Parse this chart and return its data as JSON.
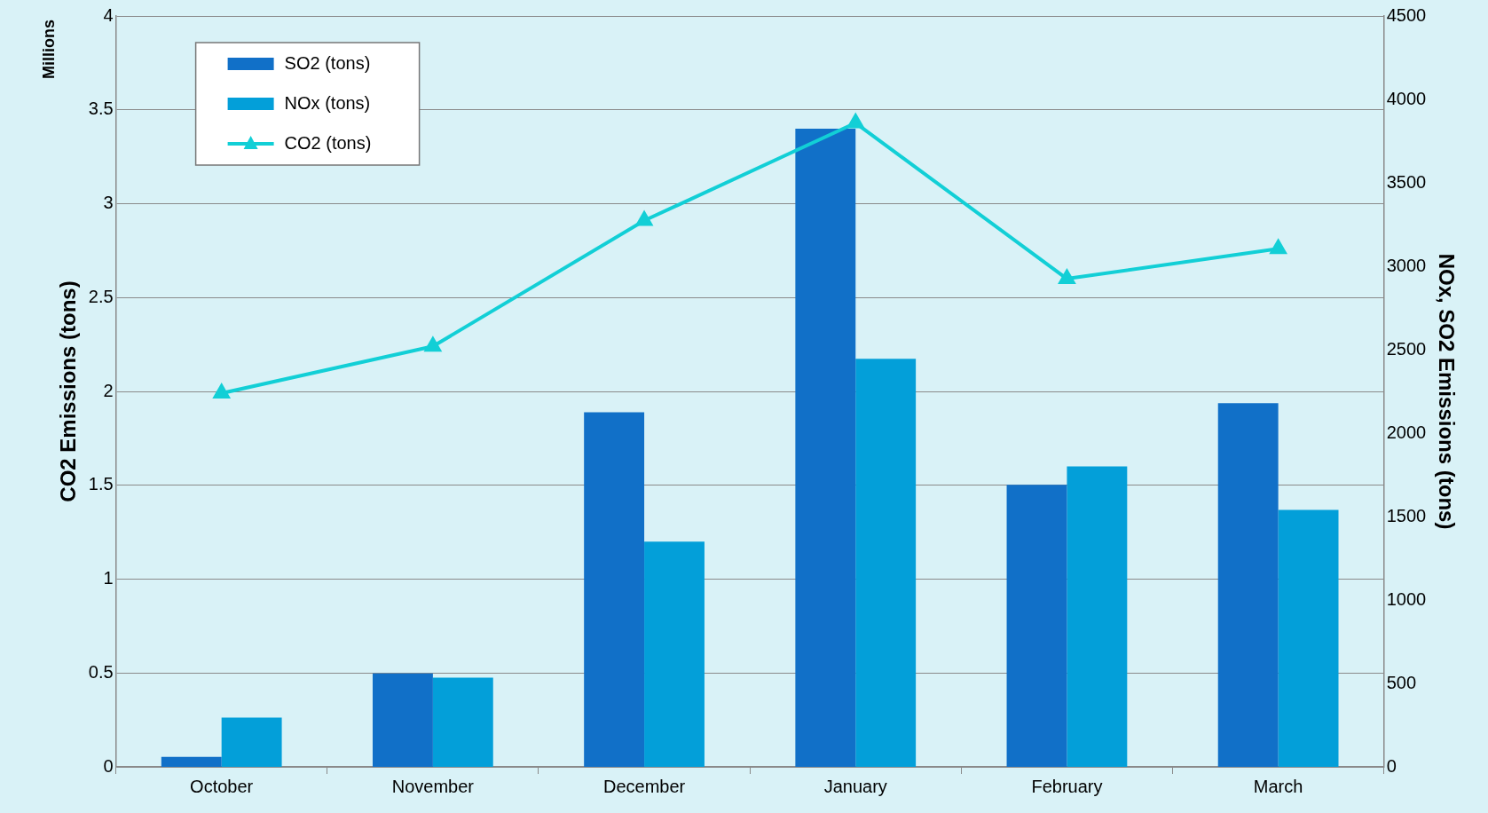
{
  "chart_data": {
    "type": "bar",
    "ylabel": "CO2 Emissions (tons)",
    "y2label": "NOx, SO2 Emissions (tons)",
    "annotations": [
      "Millions"
    ],
    "categories": [
      "October",
      "November",
      "December",
      "January",
      "February",
      "March"
    ],
    "series": [
      {
        "name": "SO2 (tons)",
        "axis": "y2",
        "color": "#1170c8",
        "values": [
          60,
          560,
          2125,
          3825,
          1690,
          2180
        ]
      },
      {
        "name": "NOx (tons)",
        "axis": "y2",
        "color": "#039fd9",
        "values": [
          295,
          535,
          1350,
          2445,
          1800,
          1540
        ]
      },
      {
        "name": "CO2 (tons)",
        "type": "line",
        "axis": "y",
        "color": "#12cfd6",
        "marker": "triangle",
        "values": [
          1.99,
          2.24,
          2.91,
          3.43,
          2.6,
          2.76
        ]
      }
    ],
    "ylim": [
      0,
      4
    ],
    "yticks": [
      0,
      0.5,
      1,
      1.5,
      2,
      2.5,
      3,
      3.5,
      4
    ],
    "y2lim": [
      0,
      4500
    ],
    "y2ticks": [
      0,
      500,
      1000,
      1500,
      2000,
      2500,
      3000,
      3500,
      4000,
      4500
    ],
    "grid": "y",
    "legend": "top left"
  }
}
